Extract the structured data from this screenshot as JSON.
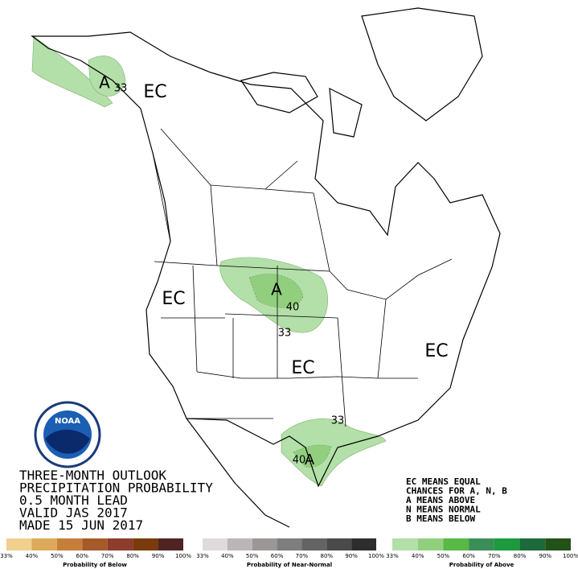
{
  "map": {
    "labels": [
      "EC",
      "EC",
      "EC",
      "EC",
      "A",
      "A",
      "A",
      "33",
      "33",
      "33",
      "40",
      "40"
    ]
  },
  "logo": {
    "text": "NOAA"
  },
  "title": {
    "lines": [
      "THREE-MONTH OUTLOOK",
      "PRECIPITATION PROBABILITY",
      "0.5 MONTH LEAD",
      "VALID JAS 2017",
      "MADE 15 JUN 2017"
    ]
  },
  "key": {
    "lines": [
      "EC MEANS EQUAL",
      "CHANCES FOR A, N, B",
      "A MEANS ABOVE",
      "N MEANS NORMAL",
      "B MEANS BELOW"
    ]
  },
  "legends": [
    {
      "title": "Probability of Below",
      "colors": [
        "#f1cf8e",
        "#dcaa5a",
        "#c57f3b",
        "#a55a2a",
        "#8e3c2e",
        "#7a3a0c",
        "#4f2423"
      ],
      "ticks": [
        "33%",
        "40%",
        "50%",
        "60%",
        "70%",
        "80%",
        "90%",
        "100%"
      ]
    },
    {
      "title": "Probability of Near-Normal",
      "colors": [
        "#e0dadc",
        "#bcb5b7",
        "#9c9797",
        "#7f7d7d",
        "#646464",
        "#4a4a4a",
        "#2d2d2d"
      ],
      "ticks": [
        "33%",
        "40%",
        "50%",
        "60%",
        "70%",
        "80%",
        "90%",
        "100%"
      ]
    },
    {
      "title": "Probability of Above",
      "colors": [
        "#b3dfa8",
        "#91cf7e",
        "#58b947",
        "#3a8f58",
        "#1b9a3e",
        "#1d6a3c",
        "#235218"
      ],
      "ticks": [
        "33%",
        "40%",
        "50%",
        "60%",
        "70%",
        "80%",
        "90%",
        "100%"
      ]
    }
  ]
}
